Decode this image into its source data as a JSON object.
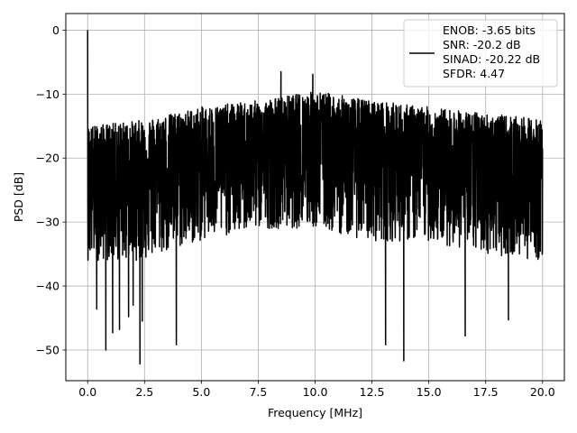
{
  "chart_data": {
    "type": "line",
    "xlabel": "Frequency [MHz]",
    "ylabel": "PSD [dB]",
    "xlim": [
      -0.96,
      20.96
    ],
    "ylim": [
      -54.8,
      2.6
    ],
    "x_ticks": [
      0.0,
      2.5,
      5.0,
      7.5,
      10.0,
      12.5,
      15.0,
      17.5,
      20.0
    ],
    "x_tick_labels": [
      "0.0",
      "2.5",
      "5.0",
      "7.5",
      "10.0",
      "12.5",
      "15.0",
      "17.5",
      "20.0"
    ],
    "y_ticks": [
      0,
      -10,
      -20,
      -30,
      -40,
      -50
    ],
    "y_tick_labels": [
      "0",
      "−10",
      "−20",
      "−30",
      "−40",
      "−50"
    ],
    "grid": true,
    "legend_position": "top-right",
    "series": [
      {
        "name": "ENOB: -3.65 bits\nSNR: -20.2 dB\nSINAD: -20.22 dB\nSFDR: 4.47",
        "legend_lines": [
          "ENOB: -3.65 bits",
          "SNR: -20.2 dB",
          "SINAD: -20.22 dB",
          "SFDR: 4.47"
        ],
        "color": "#000000",
        "x_start": 0.0,
        "x_end": 20.0,
        "peak": {
          "x": 0.0,
          "y": 0.0
        },
        "noise_envelope": [
          {
            "x": 0.0,
            "upper": -15.0,
            "median": -22.0,
            "lower": -36.0
          },
          {
            "x": 2.5,
            "upper": -14.0,
            "median": -21.0,
            "lower": -36.0
          },
          {
            "x": 5.0,
            "upper": -12.0,
            "median": -20.0,
            "lower": -33.0
          },
          {
            "x": 7.5,
            "upper": -11.0,
            "median": -19.0,
            "lower": -31.0
          },
          {
            "x": 10.0,
            "upper": -9.5,
            "median": -18.0,
            "lower": -31.0
          },
          {
            "x": 12.5,
            "upper": -11.0,
            "median": -19.0,
            "lower": -33.0
          },
          {
            "x": 15.0,
            "upper": -12.0,
            "median": -20.0,
            "lower": -33.0
          },
          {
            "x": 17.5,
            "upper": -13.0,
            "median": -21.0,
            "lower": -35.0
          },
          {
            "x": 20.0,
            "upper": -14.0,
            "median": -22.0,
            "lower": -36.0
          }
        ],
        "notable_points": [
          {
            "x": 8.5,
            "y": -6.5
          },
          {
            "x": 9.9,
            "y": -6.9
          },
          {
            "x": 2.3,
            "y": -52.2
          },
          {
            "x": 13.9,
            "y": -51.7
          },
          {
            "x": 13.1,
            "y": -49.2
          },
          {
            "x": 0.8,
            "y": -50.0
          },
          {
            "x": 1.1,
            "y": -47.3
          },
          {
            "x": 1.4,
            "y": -46.8
          },
          {
            "x": 1.8,
            "y": -44.8
          },
          {
            "x": 2.0,
            "y": -43.0
          },
          {
            "x": 2.4,
            "y": -45.5
          },
          {
            "x": 3.9,
            "y": -49.2
          },
          {
            "x": 16.6,
            "y": -47.8
          },
          {
            "x": 18.5,
            "y": -45.3
          },
          {
            "x": 0.4,
            "y": -43.6
          }
        ]
      }
    ]
  }
}
